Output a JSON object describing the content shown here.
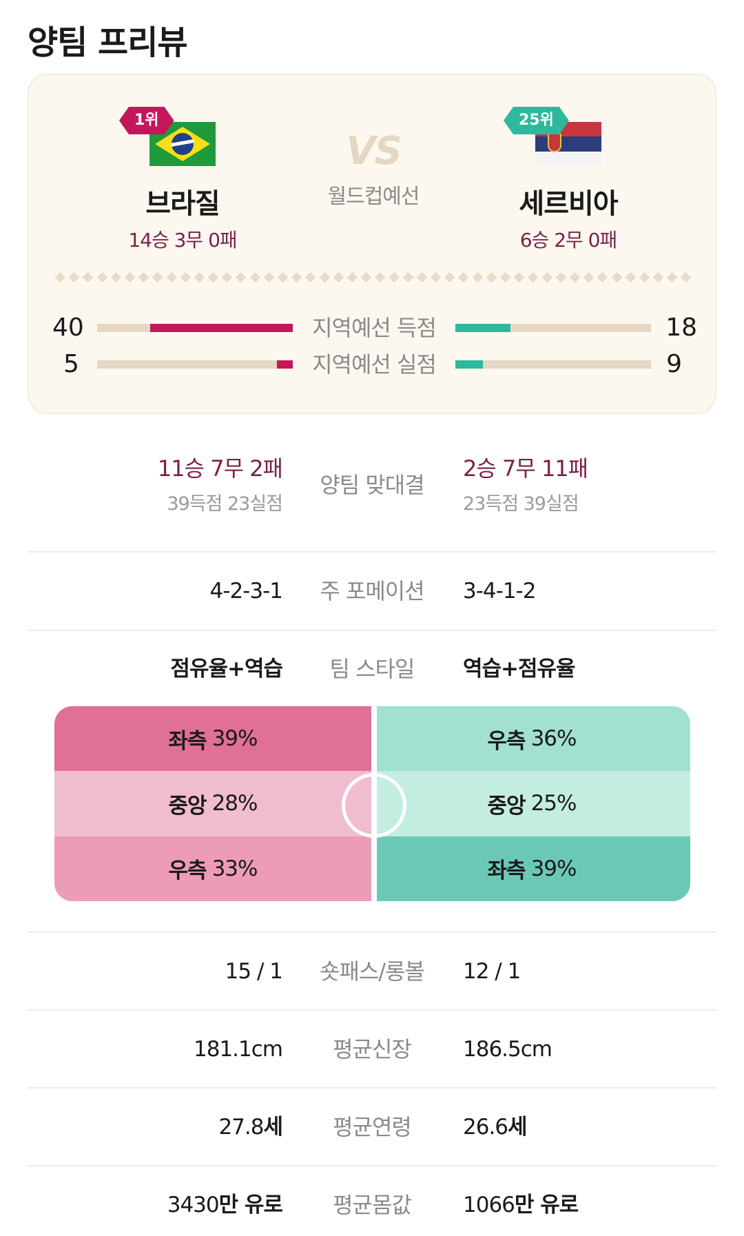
{
  "page_title": "양팀 프리뷰",
  "match": {
    "vs_label": "VS",
    "competition": "월드컵예선",
    "home": {
      "rank": "1위",
      "name": "브라질",
      "record": "14승 3무 0패",
      "flag": "brazil-flag-icon",
      "color": "#c2185b"
    },
    "away": {
      "rank": "25위",
      "name": "세르비아",
      "record": "6승 2무 0패",
      "flag": "serbia-flag-icon",
      "color": "#2eb89c"
    }
  },
  "regional_stats": [
    {
      "label": "지역예선 득점",
      "home": "40",
      "away": "18",
      "home_fill": 0.73,
      "away_fill": 0.28
    },
    {
      "label": "지역예선 실점",
      "home": "5",
      "away": "9",
      "home_fill": 0.08,
      "away_fill": 0.14
    }
  ],
  "head_to_head": {
    "label": "양팀 맞대결",
    "home_record": "11승 7무 2패",
    "home_goals": "39득점 23실점",
    "away_record": "2승 7무 11패",
    "away_goals": "23득점 39실점"
  },
  "formation": {
    "label": "주 포메이션",
    "home": "4-2-3-1",
    "away": "3-4-1-2"
  },
  "style": {
    "label": "팀 스타일",
    "home": "점유율+역습",
    "away": "역습+점유율"
  },
  "attack_zones": {
    "home": [
      {
        "side": "좌측",
        "pct": "39%",
        "color": "#e07096"
      },
      {
        "side": "중앙",
        "pct": "28%",
        "color": "#f0bcd0"
      },
      {
        "side": "우측",
        "pct": "33%",
        "color": "#ec9cb8"
      }
    ],
    "away": [
      {
        "side": "우측",
        "pct": "36%",
        "color": "#a2e0d2"
      },
      {
        "side": "중앙",
        "pct": "25%",
        "color": "#c4ede2"
      },
      {
        "side": "좌측",
        "pct": "39%",
        "color": "#6cc8b6"
      }
    ]
  },
  "rows": [
    {
      "label": "숏패스/롱볼",
      "home": "15 / 1",
      "away": "12 / 1",
      "home_unit": "",
      "away_unit": ""
    },
    {
      "label": "평균신장",
      "home": "181.1cm",
      "away": "186.5cm",
      "home_unit": "",
      "away_unit": ""
    },
    {
      "label": "평균연령",
      "home": "27.8",
      "away": "26.6",
      "home_unit": "세",
      "away_unit": "세"
    },
    {
      "label": "평균몸값",
      "home": "3430",
      "away": "1066",
      "home_unit": "만 유로",
      "away_unit": "만 유로"
    }
  ]
}
